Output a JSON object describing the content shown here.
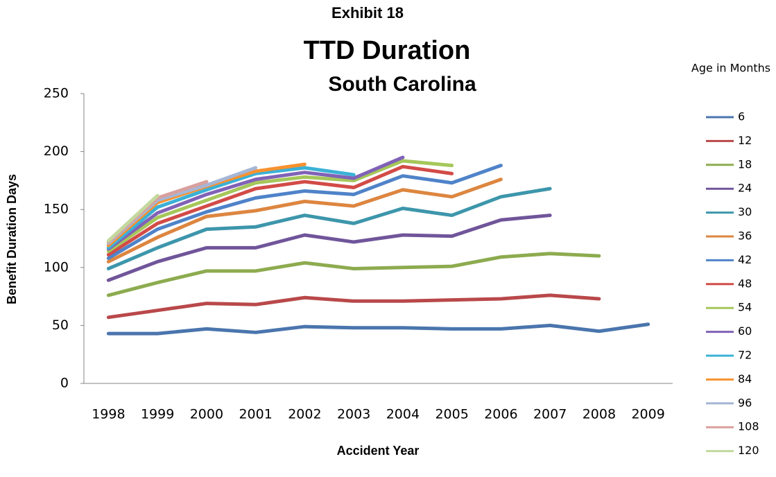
{
  "chart_data": {
    "type": "line",
    "pretitle": "Exhibit 18",
    "title": "TTD Duration",
    "subtitle": "South Carolina",
    "x_label": "Accident Year",
    "y_label": "Benefit Duration Days",
    "legend_title": "Age in Months",
    "legend": "right",
    "grid": false,
    "categories": [
      "1998",
      "1999",
      "2000",
      "2001",
      "2002",
      "2003",
      "2004",
      "2005",
      "2006",
      "2007",
      "2008",
      "2009"
    ],
    "ylim": [
      0,
      250
    ],
    "yticks": [
      0,
      50,
      100,
      150,
      200,
      250
    ],
    "series": [
      {
        "name": "6",
        "color": "#4a75ad",
        "values": [
          43,
          43,
          47,
          44,
          49,
          48,
          48,
          47,
          47,
          50,
          45,
          51
        ]
      },
      {
        "name": "12",
        "color": "#b9484a",
        "values": [
          57,
          63,
          69,
          68,
          74,
          71,
          71,
          72,
          73,
          76,
          73,
          null
        ]
      },
      {
        "name": "18",
        "color": "#8dab4f",
        "values": [
          76,
          87,
          97,
          97,
          104,
          99,
          100,
          101,
          109,
          112,
          110,
          null
        ]
      },
      {
        "name": "24",
        "color": "#70559a",
        "values": [
          89,
          105,
          117,
          117,
          128,
          122,
          128,
          127,
          141,
          145,
          null,
          null
        ]
      },
      {
        "name": "30",
        "color": "#3d96ab",
        "values": [
          99,
          117,
          133,
          135,
          145,
          138,
          151,
          145,
          161,
          168,
          null,
          null
        ]
      },
      {
        "name": "36",
        "color": "#dd8640",
        "values": [
          105,
          126,
          144,
          149,
          157,
          153,
          167,
          161,
          176,
          null,
          null,
          null
        ]
      },
      {
        "name": "42",
        "color": "#4f83c9",
        "values": [
          108,
          133,
          148,
          160,
          166,
          163,
          179,
          173,
          188,
          null,
          null,
          null
        ]
      },
      {
        "name": "48",
        "color": "#d24b47",
        "values": [
          111,
          138,
          153,
          168,
          174,
          169,
          187,
          181,
          null,
          null,
          null,
          null
        ]
      },
      {
        "name": "54",
        "color": "#a6c75a",
        "values": [
          114,
          143,
          158,
          173,
          178,
          175,
          192,
          188,
          null,
          null,
          null,
          null
        ]
      },
      {
        "name": "60",
        "color": "#8062b6",
        "values": [
          116,
          147,
          163,
          176,
          182,
          177,
          195,
          null,
          null,
          null,
          null,
          null
        ]
      },
      {
        "name": "72",
        "color": "#3bb1d6",
        "values": [
          117,
          152,
          167,
          181,
          186,
          180,
          null,
          null,
          null,
          null,
          null,
          null
        ]
      },
      {
        "name": "84",
        "color": "#f7922f",
        "values": [
          119,
          156,
          170,
          183,
          189,
          null,
          null,
          null,
          null,
          null,
          null,
          null
        ]
      },
      {
        "name": "96",
        "color": "#a5b6d6",
        "values": [
          121,
          158,
          171,
          186,
          null,
          null,
          null,
          null,
          null,
          null,
          null,
          null
        ]
      },
      {
        "name": "108",
        "color": "#d9a09e",
        "values": [
          122,
          160,
          174,
          null,
          null,
          null,
          null,
          null,
          null,
          null,
          null,
          null
        ]
      },
      {
        "name": "120",
        "color": "#c3d89d",
        "values": [
          123,
          162,
          null,
          null,
          null,
          null,
          null,
          null,
          null,
          null,
          null,
          null
        ]
      }
    ]
  }
}
